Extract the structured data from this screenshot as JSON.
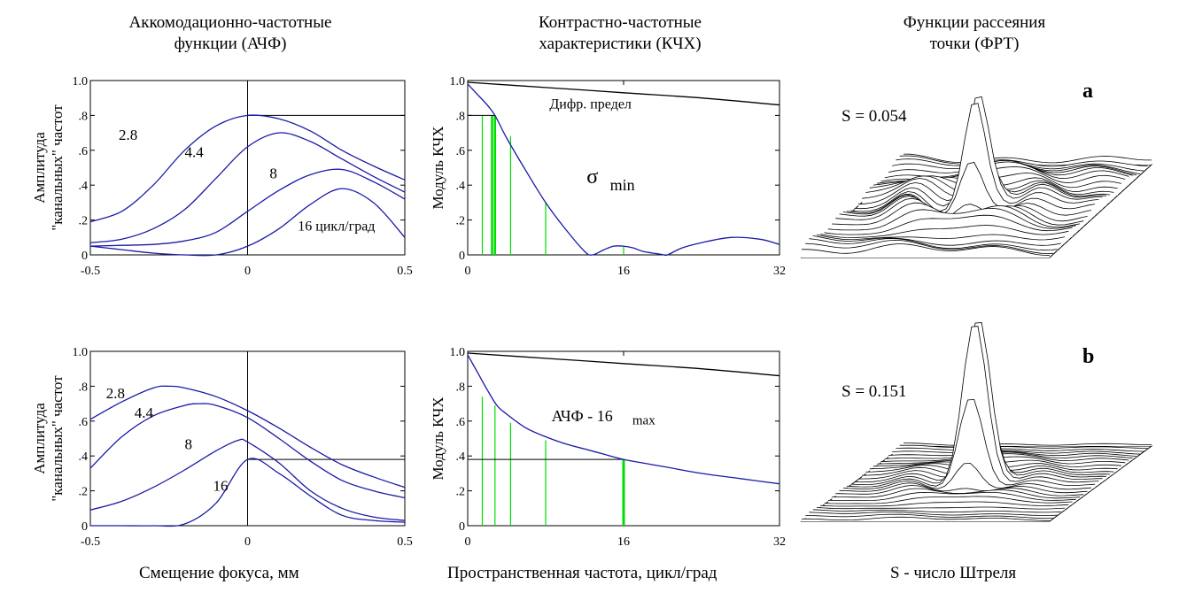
{
  "titles": {
    "col1_line1": "Аккомодационно-частотные",
    "col1_line2": "функции (АЧФ)",
    "col2_line1": "Контрастно-частотные",
    "col2_line2": "характеристики (КЧХ)",
    "col3_line1": "Функции рассеяния",
    "col3_line2": "точки (ФРТ)"
  },
  "bottom_labels": {
    "col1": "Смещение фокуса, мм",
    "col2": "Пространственная частота, цикл/град",
    "col3": "S - число Штреля"
  },
  "psf": {
    "a": {
      "label": "a",
      "strehl": "S = 0.054"
    },
    "b": {
      "label": "b",
      "strehl": "S = 0.151"
    }
  },
  "colors": {
    "curve": "#1a1aa6",
    "marker": "#00dd00",
    "axis": "#000000"
  },
  "chart_data": [
    {
      "id": "afc_a",
      "type": "line",
      "ylabel_line1": "Амплитуда",
      "ylabel_line2": "\"канальных\" частот",
      "xlim": [
        -0.5,
        0.5
      ],
      "ylim": [
        0,
        1.0
      ],
      "xticks": [
        "-0.5",
        "0",
        "0.5"
      ],
      "yticks": [
        "0",
        ".2",
        ".4",
        ".6",
        ".8",
        "1.0"
      ],
      "reference": {
        "x": 0,
        "y": 0.8
      },
      "series": [
        {
          "name": "2.8",
          "x": [
            -0.5,
            -0.4,
            -0.3,
            -0.2,
            -0.1,
            0,
            0.1,
            0.2,
            0.3,
            0.4,
            0.5
          ],
          "y": [
            0.19,
            0.25,
            0.4,
            0.6,
            0.74,
            0.8,
            0.78,
            0.71,
            0.6,
            0.51,
            0.43
          ]
        },
        {
          "name": "4.4",
          "x": [
            -0.5,
            -0.4,
            -0.3,
            -0.2,
            -0.1,
            0,
            0.1,
            0.2,
            0.3,
            0.4,
            0.5
          ],
          "y": [
            0.07,
            0.09,
            0.15,
            0.26,
            0.44,
            0.62,
            0.7,
            0.65,
            0.55,
            0.45,
            0.36
          ]
        },
        {
          "name": "8",
          "x": [
            -0.5,
            -0.4,
            -0.3,
            -0.2,
            -0.1,
            0,
            0.1,
            0.2,
            0.3,
            0.4,
            0.5
          ],
          "y": [
            0.05,
            0.055,
            0.06,
            0.08,
            0.13,
            0.25,
            0.37,
            0.46,
            0.49,
            0.42,
            0.32
          ]
        },
        {
          "name": "16 цикл/град",
          "x": [
            -0.5,
            -0.4,
            -0.3,
            -0.2,
            -0.1,
            0,
            0.1,
            0.2,
            0.3,
            0.4,
            0.5
          ],
          "y": [
            0.05,
            0.03,
            0.01,
            0,
            0,
            0.05,
            0.15,
            0.29,
            0.38,
            0.3,
            0.1
          ]
        }
      ]
    },
    {
      "id": "mtf_a",
      "type": "line",
      "ylabel": "Модуль КЧХ",
      "annotation": "Дифр. предел",
      "sigma_label": "σ",
      "sigma_sub": "min",
      "xlim": [
        0,
        32
      ],
      "ylim": [
        0,
        1.0
      ],
      "xticks": [
        "0",
        "16",
        "32"
      ],
      "yticks": [
        "0",
        ".2",
        ".4",
        ".6",
        ".8",
        "1.0"
      ],
      "reference_y": 0.8,
      "diffraction_limit": {
        "x": [
          0,
          8,
          16,
          24,
          32
        ],
        "y": [
          0.99,
          0.96,
          0.93,
          0.9,
          0.86
        ]
      },
      "mtf": {
        "x": [
          0,
          1,
          2,
          2.8,
          4,
          6,
          8,
          10,
          12,
          12.8,
          14,
          15,
          16,
          17,
          18,
          20,
          20.5,
          22,
          24,
          27,
          30,
          32
        ],
        "y": [
          0.98,
          0.92,
          0.86,
          0.8,
          0.67,
          0.48,
          0.3,
          0.15,
          0.02,
          0,
          0.03,
          0.05,
          0.05,
          0.04,
          0.02,
          0.002,
          0,
          0.04,
          0.07,
          0.1,
          0.09,
          0.06
        ]
      },
      "markers": [
        {
          "x": 1.5,
          "y": 0.8
        },
        {
          "x": 2.5,
          "y": 0.8
        },
        {
          "x": 2.8,
          "y": 0.8
        },
        {
          "x": 4.4,
          "y": 0.68
        },
        {
          "x": 8,
          "y": 0.3
        },
        {
          "x": 16,
          "y": 0.05
        }
      ]
    },
    {
      "id": "afc_b",
      "type": "line",
      "ylabel_line1": "Амплитуда",
      "ylabel_line2": "\"канальных\" частот",
      "xlim": [
        -0.5,
        0.5
      ],
      "ylim": [
        0,
        1.0
      ],
      "xticks": [
        "-0.5",
        "0",
        "0.5"
      ],
      "yticks": [
        "0",
        ".2",
        ".4",
        ".6",
        ".8",
        "1.0"
      ],
      "reference": {
        "x": 0,
        "y": 0.38
      },
      "series": [
        {
          "name": "2.8",
          "x": [
            -0.5,
            -0.4,
            -0.3,
            -0.25,
            -0.2,
            -0.1,
            0,
            0.1,
            0.2,
            0.3,
            0.4,
            0.5
          ],
          "y": [
            0.61,
            0.71,
            0.79,
            0.8,
            0.79,
            0.74,
            0.66,
            0.56,
            0.45,
            0.35,
            0.28,
            0.22
          ]
        },
        {
          "name": "4.4",
          "x": [
            -0.5,
            -0.4,
            -0.3,
            -0.2,
            -0.15,
            -0.1,
            0,
            0.1,
            0.2,
            0.3,
            0.4,
            0.5
          ],
          "y": [
            0.33,
            0.51,
            0.63,
            0.69,
            0.7,
            0.69,
            0.62,
            0.5,
            0.37,
            0.26,
            0.2,
            0.16
          ]
        },
        {
          "name": "8",
          "x": [
            -0.5,
            -0.4,
            -0.3,
            -0.2,
            -0.1,
            -0.03,
            0,
            0.1,
            0.2,
            0.3,
            0.4,
            0.5
          ],
          "y": [
            0.09,
            0.14,
            0.22,
            0.32,
            0.43,
            0.49,
            0.48,
            0.36,
            0.2,
            0.1,
            0.05,
            0.03
          ]
        },
        {
          "name": "16",
          "x": [
            -0.5,
            -0.4,
            -0.3,
            -0.2,
            -0.1,
            0,
            0.1,
            0.2,
            0.3,
            0.4,
            0.5
          ],
          "y": [
            0,
            0,
            0,
            0.01,
            0.13,
            0.38,
            0.3,
            0.17,
            0.06,
            0.03,
            0.02
          ]
        }
      ]
    },
    {
      "id": "mtf_b",
      "type": "line",
      "ylabel": "Модуль КЧХ",
      "annotation": "АЧФ - 16",
      "annotation_sub": "max",
      "xlim": [
        0,
        32
      ],
      "ylim": [
        0,
        1.0
      ],
      "xticks": [
        "0",
        "16",
        "32"
      ],
      "yticks": [
        "0",
        ".2",
        ".4",
        ".6",
        ".8",
        "1.0"
      ],
      "reference_y": 0.38,
      "diffraction_limit": {
        "x": [
          0,
          8,
          16,
          24,
          32
        ],
        "y": [
          0.99,
          0.96,
          0.93,
          0.9,
          0.86
        ]
      },
      "mtf": {
        "x": [
          0,
          1,
          2,
          3,
          4,
          6,
          8,
          10,
          12,
          14,
          16,
          20,
          24,
          28,
          32
        ],
        "y": [
          0.98,
          0.88,
          0.78,
          0.69,
          0.64,
          0.56,
          0.51,
          0.47,
          0.44,
          0.41,
          0.38,
          0.34,
          0.3,
          0.27,
          0.24
        ]
      },
      "markers": [
        {
          "x": 1.5,
          "y": 0.74
        },
        {
          "x": 2.8,
          "y": 0.69
        },
        {
          "x": 4.4,
          "y": 0.59
        },
        {
          "x": 8,
          "y": 0.49
        },
        {
          "x": 16,
          "y": 0.38
        }
      ]
    }
  ]
}
